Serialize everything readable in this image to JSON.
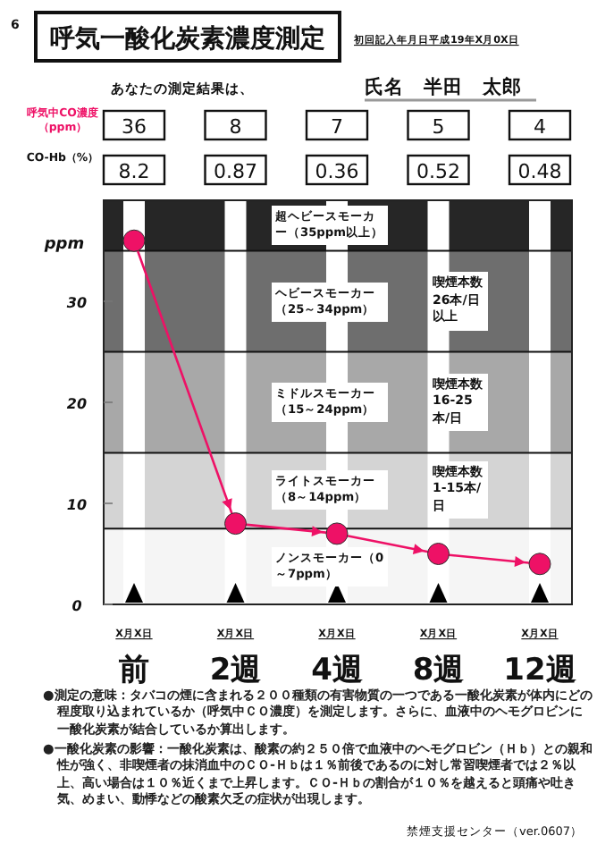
{
  "chart_data": {
    "type": "line",
    "title": "呼気一酸化炭素濃度測定",
    "subtitle": "初回記入年月日平成19年X月0X日",
    "categories": [
      "前",
      "2週",
      "4週",
      "8週",
      "12週"
    ],
    "series": [
      {
        "name": "呼気中CO濃度（ppm）",
        "color": "#ee1166",
        "values": [
          36,
          8,
          7,
          5,
          4
        ]
      }
    ],
    "ref_lines": [
      {
        "axis": "x",
        "value": "前",
        "color": "#ffffff"
      },
      {
        "axis": "x",
        "value": "2週",
        "color": "#ffffff"
      },
      {
        "axis": "x",
        "value": "4週",
        "color": "#ffffff"
      },
      {
        "axis": "x",
        "value": "8週",
        "color": "#ffffff"
      },
      {
        "axis": "x",
        "value": "12週",
        "color": "#ffffff"
      }
    ],
    "ylabel": "ppm",
    "ylim": [
      0,
      40
    ],
    "yticks": [
      0,
      10,
      20,
      30
    ],
    "marker": "circle",
    "grid": false,
    "data_labels": true,
    "bands": [
      {
        "axis": "y",
        "from": 35,
        "to": 40,
        "label": "超ヘビースモーカー（35ppm以上）",
        "color": "#262626"
      },
      {
        "axis": "y",
        "from": 25,
        "to": 35,
        "label": "ヘビースモーカー（25～34ppm）",
        "color": "#6e6e6e"
      },
      {
        "axis": "y",
        "from": 15,
        "to": 25,
        "label": "ミドルスモーカー（15～24ppm）",
        "color": "#a8a8a8"
      },
      {
        "axis": "y",
        "from": 7.5,
        "to": 15,
        "label": "ライトスモーカー（8～14ppm）",
        "color": "#d4d4d4"
      },
      {
        "axis": "y",
        "from": 0,
        "to": 7.5,
        "label": "ノンスモーカー（0～7ppm）",
        "color": "#f5f5f5"
      }
    ],
    "annotations": [
      "6",
      "あなたの測定結果は、",
      "氏名　半田　太郎",
      "X月X日",
      "X月X日",
      "X月X日",
      "X月X日",
      "X月X日",
      "喫煙本数26本/日以上",
      "喫煙本数16-25本/日",
      "喫煙本数1-15本/日",
      "●測定の意味：タバコの煙に含まれる２００種類の有害物質の一つである一酸化炭素が体内にどの程度取り込まれているか（呼気中ＣＯ濃度）を測定します。さらに、血液中のヘモグロビンに一酸化炭素が結合しているか算出します。",
      "●一酸化炭素の影響：一酸化炭素は、酸素の約２５０倍で血液中のヘモグロビン（Ｈｂ）との親和性が強く、非喫煙者の抹消血中のＣＯ-Ｈｂは１％前後であるのに対し常習喫煙者では２％以上、高い場合は１０％近くまで上昇します。ＣＯ-Ｈｂの割合が１０％を越えると頭痛や吐き気、めまい、動悸などの酸素欠乏の症状が出現します。",
      "禁煙支援センター（ver.0607）",
      "CO-Hb（%）",
      "8.2",
      "0.87",
      "0.36",
      "0.52",
      "0.48"
    ]
  }
}
